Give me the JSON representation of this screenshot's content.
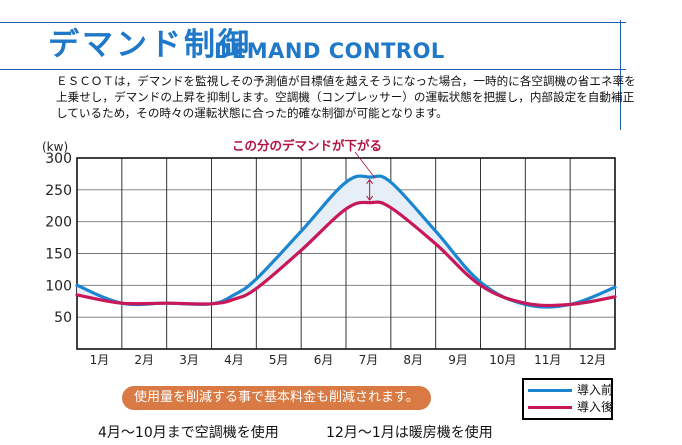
{
  "header": {
    "title_jp": "デマンド制御",
    "title_en": "DEMAND CONTROL"
  },
  "description": {
    "lines": [
      "ＥＳＣＯＴは，デマンドを監視しその予測値が目標値を越えそうになった場合，一時的に各空調機の省エネ率を",
      "上乗せし，デマンドの上昇を抑制します。空調機（コンプレッサー）の運転状態を把握し，内部設定を自動補正",
      "しているため，その時々の運転状態に合った的確な制御が可能となります。"
    ]
  },
  "colors": {
    "accent": "#1f78c8",
    "before": "#1b86d0",
    "after": "#c8185a",
    "annotation": "#b0123f",
    "pill": "#d97a44",
    "band": "#e6eef7"
  },
  "chart_data": {
    "type": "line",
    "title": "",
    "unit_label": "(kw)",
    "xlabel": "",
    "ylabel": "kw",
    "ylim": [
      0,
      300
    ],
    "yticks": [
      50,
      100,
      150,
      200,
      250,
      300
    ],
    "grid": true,
    "categories": [
      "1月",
      "2月",
      "3月",
      "4月",
      "5月",
      "6月",
      "7月",
      "8月",
      "9月",
      "10月",
      "11月",
      "12月"
    ],
    "x_positions": [
      0,
      1,
      2,
      3,
      4,
      5,
      6,
      6.55,
      7,
      8,
      9,
      10,
      11,
      12
    ],
    "series": [
      {
        "name": "導入前",
        "color": "#1b86d0",
        "points": [
          [
            0,
            100
          ],
          [
            1,
            72
          ],
          [
            2,
            72
          ],
          [
            3,
            71
          ],
          [
            3.5,
            85
          ],
          [
            4,
            110
          ],
          [
            5,
            185
          ],
          [
            6,
            262
          ],
          [
            6.55,
            270
          ],
          [
            7,
            262
          ],
          [
            8,
            185
          ],
          [
            9,
            105
          ],
          [
            10,
            70
          ],
          [
            11,
            70
          ],
          [
            12,
            97
          ]
        ]
      },
      {
        "name": "導入後",
        "color": "#c8185a",
        "points": [
          [
            0,
            85
          ],
          [
            1,
            72
          ],
          [
            2,
            72
          ],
          [
            3,
            71
          ],
          [
            3.5,
            78
          ],
          [
            4,
            95
          ],
          [
            5,
            155
          ],
          [
            6,
            220
          ],
          [
            6.55,
            230
          ],
          [
            7,
            222
          ],
          [
            8,
            165
          ],
          [
            9,
            100
          ],
          [
            10,
            72
          ],
          [
            11,
            70
          ],
          [
            12,
            82
          ]
        ]
      }
    ],
    "annotation": "この分のデマンドが下がる",
    "legend": {
      "placement": "bottom-right",
      "entries": [
        "導入前",
        "導入後"
      ]
    }
  },
  "footer": {
    "pill_text": "使用量を削減する事で基本料金も削減されます。",
    "note_left": "4月～10月まで空調機を使用",
    "note_right": "12月～1月は暖房機を使用"
  }
}
